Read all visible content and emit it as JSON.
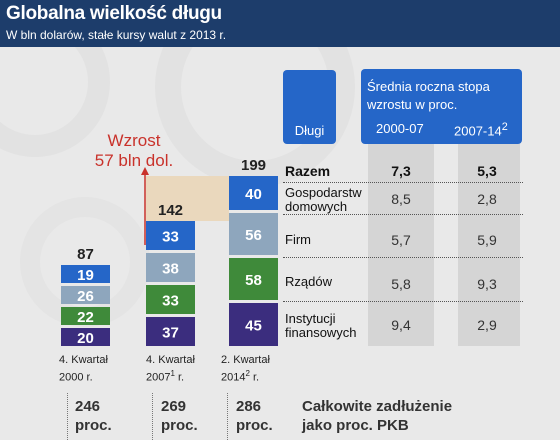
{
  "header": {
    "title": "Globalna wielkość długu",
    "subtitle": "W bln dolarów, stałe kursy walut z 2013 r."
  },
  "colors": {
    "header_bg": "#1d3d6b",
    "background": "#e9e9e9",
    "gospodarstw": "#2566c8",
    "firm": "#8ea6bd",
    "rzadow": "#3f8a3a",
    "instytucji": "#3b2d7e",
    "growth": "#c9322b",
    "growth_band": "#ead8bd"
  },
  "growth": {
    "line1": "Wzrost",
    "line2": "57 bln dol."
  },
  "table": {
    "dlugi_header": "Długi",
    "rate_header": "Średnia roczna stopa wzrostu w proc.",
    "col1_header": "2000-07",
    "col2_header_main": "2007-14",
    "col2_header_sup": "2",
    "rows": [
      {
        "label": "Razem",
        "r1": "7,3",
        "r2": "5,3"
      },
      {
        "label": "Gospodarstw domowych",
        "r1": "8,5",
        "r2": "2,8"
      },
      {
        "label": "Firm",
        "r1": "5,7",
        "r2": "5,9"
      },
      {
        "label": "Rządów",
        "r1": "5,8",
        "r2": "9,3"
      },
      {
        "label": "Instytucji finansowych",
        "r1": "9,4",
        "r2": "2,9"
      }
    ]
  },
  "chart_data": {
    "type": "bar",
    "stacked": true,
    "categories": [
      "4. Kwartał 2000 r.",
      "4. Kwartał 2007¹ r.",
      "2. Kwartał 2014² r."
    ],
    "series": [
      {
        "name": "Instytucji finansowych",
        "values": [
          20,
          37,
          45
        ]
      },
      {
        "name": "Rządów",
        "values": [
          22,
          33,
          58
        ]
      },
      {
        "name": "Firm",
        "values": [
          26,
          38,
          56
        ]
      },
      {
        "name": "Gospodarstw domowych",
        "values": [
          19,
          33,
          40
        ]
      }
    ],
    "totals": [
      87,
      142,
      199
    ],
    "growth_label": "Wzrost 57 bln dol."
  },
  "periods": [
    {
      "line1": "4. Kwartał",
      "line2_main": "2000",
      "line2_sup": "",
      "line2_suffix": " r."
    },
    {
      "line1": "4. Kwartał",
      "line2_main": "2007",
      "line2_sup": "1",
      "line2_suffix": " r."
    },
    {
      "line1": "2. Kwartał",
      "line2_main": "2014",
      "line2_sup": "2",
      "line2_suffix": " r."
    }
  ],
  "pkb": [
    {
      "value": "246",
      "unit": "proc."
    },
    {
      "value": "269",
      "unit": "proc."
    },
    {
      "value": "286",
      "unit": "proc."
    }
  ],
  "pkb_label": {
    "line1": "Całkowite zadłużenie",
    "line2": "jako proc. PKB"
  }
}
